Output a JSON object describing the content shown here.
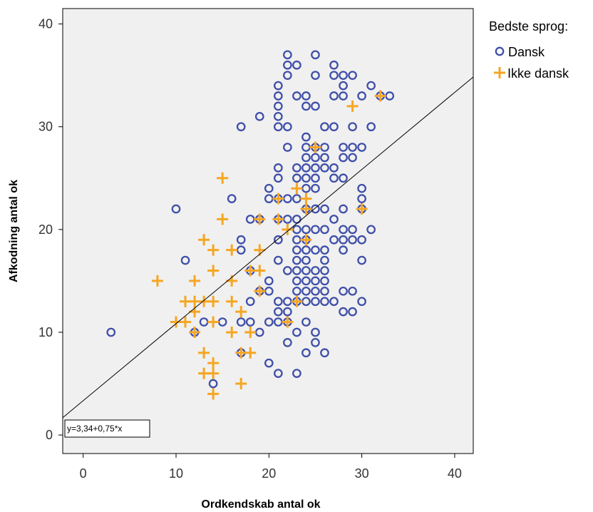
{
  "chart_data": {
    "type": "scatter",
    "xlabel": "Ordkendskab antal ok",
    "ylabel": "Afkodning antal ok",
    "xlim": [
      -2.2,
      42
    ],
    "ylim": [
      -1.8,
      41.5
    ],
    "xticks": [
      0,
      10,
      20,
      30,
      40
    ],
    "yticks": [
      0,
      10,
      20,
      30,
      40
    ],
    "grid": false,
    "legend": {
      "title": "Bedste sprog:",
      "placement": "right"
    },
    "fit_line": {
      "label": "y=3,34+0,75*x",
      "intercept": 3.34,
      "slope": 0.75
    },
    "series": [
      {
        "name": "Dansk",
        "marker": "circle",
        "color": "#3f4fa8",
        "points": [
          [
            3,
            10
          ],
          [
            10,
            22
          ],
          [
            11,
            17
          ],
          [
            12,
            10
          ],
          [
            13,
            11
          ],
          [
            14,
            5
          ],
          [
            15,
            11
          ],
          [
            16,
            23
          ],
          [
            17,
            30
          ],
          [
            17,
            19
          ],
          [
            17,
            18
          ],
          [
            17,
            11
          ],
          [
            17,
            8
          ],
          [
            18,
            21
          ],
          [
            18,
            16
          ],
          [
            18,
            13
          ],
          [
            18,
            11
          ],
          [
            19,
            31
          ],
          [
            19,
            21
          ],
          [
            19,
            14
          ],
          [
            19,
            10
          ],
          [
            20,
            24
          ],
          [
            20,
            23
          ],
          [
            20,
            15
          ],
          [
            20,
            14
          ],
          [
            20,
            11
          ],
          [
            20,
            7
          ],
          [
            21,
            34
          ],
          [
            21,
            33
          ],
          [
            21,
            32
          ],
          [
            21,
            31
          ],
          [
            21,
            30
          ],
          [
            21,
            26
          ],
          [
            21,
            25
          ],
          [
            21,
            23
          ],
          [
            21,
            21
          ],
          [
            21,
            19
          ],
          [
            21,
            17
          ],
          [
            21,
            13
          ],
          [
            21,
            12
          ],
          [
            21,
            11
          ],
          [
            21,
            6
          ],
          [
            22,
            37
          ],
          [
            22,
            36
          ],
          [
            22,
            35
          ],
          [
            22,
            30
          ],
          [
            22,
            28
          ],
          [
            22,
            23
          ],
          [
            22,
            21
          ],
          [
            22,
            16
          ],
          [
            22,
            13
          ],
          [
            22,
            12
          ],
          [
            22,
            11
          ],
          [
            22,
            9
          ],
          [
            23,
            36
          ],
          [
            23,
            33
          ],
          [
            23,
            26
          ],
          [
            23,
            25
          ],
          [
            23,
            23
          ],
          [
            23,
            21
          ],
          [
            23,
            20
          ],
          [
            23,
            19
          ],
          [
            23,
            18
          ],
          [
            23,
            17
          ],
          [
            23,
            16
          ],
          [
            23,
            15
          ],
          [
            23,
            14
          ],
          [
            23,
            13
          ],
          [
            23,
            10
          ],
          [
            23,
            6
          ],
          [
            24,
            33
          ],
          [
            24,
            32
          ],
          [
            24,
            29
          ],
          [
            24,
            28
          ],
          [
            24,
            27
          ],
          [
            24,
            26
          ],
          [
            24,
            25
          ],
          [
            24,
            24
          ],
          [
            24,
            22
          ],
          [
            24,
            20
          ],
          [
            24,
            19
          ],
          [
            24,
            18
          ],
          [
            24,
            17
          ],
          [
            24,
            16
          ],
          [
            24,
            15
          ],
          [
            24,
            14
          ],
          [
            24,
            13
          ],
          [
            24,
            11
          ],
          [
            24,
            8
          ],
          [
            25,
            37
          ],
          [
            25,
            35
          ],
          [
            25,
            32
          ],
          [
            25,
            28
          ],
          [
            25,
            27
          ],
          [
            25,
            26
          ],
          [
            25,
            25
          ],
          [
            25,
            24
          ],
          [
            25,
            22
          ],
          [
            25,
            20
          ],
          [
            25,
            18
          ],
          [
            25,
            16
          ],
          [
            25,
            15
          ],
          [
            25,
            14
          ],
          [
            25,
            13
          ],
          [
            25,
            10
          ],
          [
            25,
            9
          ],
          [
            26,
            30
          ],
          [
            26,
            28
          ],
          [
            26,
            27
          ],
          [
            26,
            26
          ],
          [
            26,
            22
          ],
          [
            26,
            20
          ],
          [
            26,
            18
          ],
          [
            26,
            17
          ],
          [
            26,
            16
          ],
          [
            26,
            15
          ],
          [
            26,
            14
          ],
          [
            26,
            13
          ],
          [
            26,
            8
          ],
          [
            27,
            36
          ],
          [
            27,
            35
          ],
          [
            27,
            33
          ],
          [
            27,
            30
          ],
          [
            27,
            26
          ],
          [
            27,
            25
          ],
          [
            27,
            21
          ],
          [
            27,
            19
          ],
          [
            27,
            13
          ],
          [
            28,
            35
          ],
          [
            28,
            34
          ],
          [
            28,
            33
          ],
          [
            28,
            28
          ],
          [
            28,
            27
          ],
          [
            28,
            25
          ],
          [
            28,
            22
          ],
          [
            28,
            20
          ],
          [
            28,
            19
          ],
          [
            28,
            18
          ],
          [
            28,
            14
          ],
          [
            28,
            12
          ],
          [
            29,
            35
          ],
          [
            29,
            30
          ],
          [
            29,
            28
          ],
          [
            29,
            27
          ],
          [
            29,
            20
          ],
          [
            29,
            19
          ],
          [
            29,
            14
          ],
          [
            29,
            12
          ],
          [
            30,
            33
          ],
          [
            30,
            28
          ],
          [
            30,
            24
          ],
          [
            30,
            23
          ],
          [
            30,
            22
          ],
          [
            30,
            19
          ],
          [
            30,
            17
          ],
          [
            30,
            13
          ],
          [
            31,
            34
          ],
          [
            31,
            30
          ],
          [
            31,
            20
          ],
          [
            32,
            33
          ],
          [
            33,
            33
          ]
        ]
      },
      {
        "name": "Ikke dansk",
        "marker": "plus",
        "color": "#f5a623",
        "points": [
          [
            8,
            15
          ],
          [
            10,
            11
          ],
          [
            11,
            13
          ],
          [
            11,
            11
          ],
          [
            12,
            15
          ],
          [
            12,
            13
          ],
          [
            12,
            12
          ],
          [
            12,
            10
          ],
          [
            13,
            19
          ],
          [
            13,
            13
          ],
          [
            13,
            8
          ],
          [
            13,
            6
          ],
          [
            14,
            18
          ],
          [
            14,
            16
          ],
          [
            14,
            13
          ],
          [
            14,
            11
          ],
          [
            14,
            7
          ],
          [
            14,
            6
          ],
          [
            14,
            4
          ],
          [
            15,
            25
          ],
          [
            15,
            21
          ],
          [
            16,
            18
          ],
          [
            16,
            15
          ],
          [
            16,
            13
          ],
          [
            16,
            10
          ],
          [
            17,
            12
          ],
          [
            17,
            8
          ],
          [
            17,
            5
          ],
          [
            18,
            16
          ],
          [
            18,
            10
          ],
          [
            18,
            8
          ],
          [
            19,
            21
          ],
          [
            19,
            18
          ],
          [
            19,
            16
          ],
          [
            19,
            14
          ],
          [
            21,
            23
          ],
          [
            21,
            21
          ],
          [
            22,
            20
          ],
          [
            22,
            11
          ],
          [
            23,
            24
          ],
          [
            23,
            13
          ],
          [
            24,
            23
          ],
          [
            24,
            22
          ],
          [
            24,
            19
          ],
          [
            25,
            28
          ],
          [
            29,
            32
          ],
          [
            30,
            22
          ],
          [
            32,
            33
          ]
        ]
      }
    ]
  }
}
